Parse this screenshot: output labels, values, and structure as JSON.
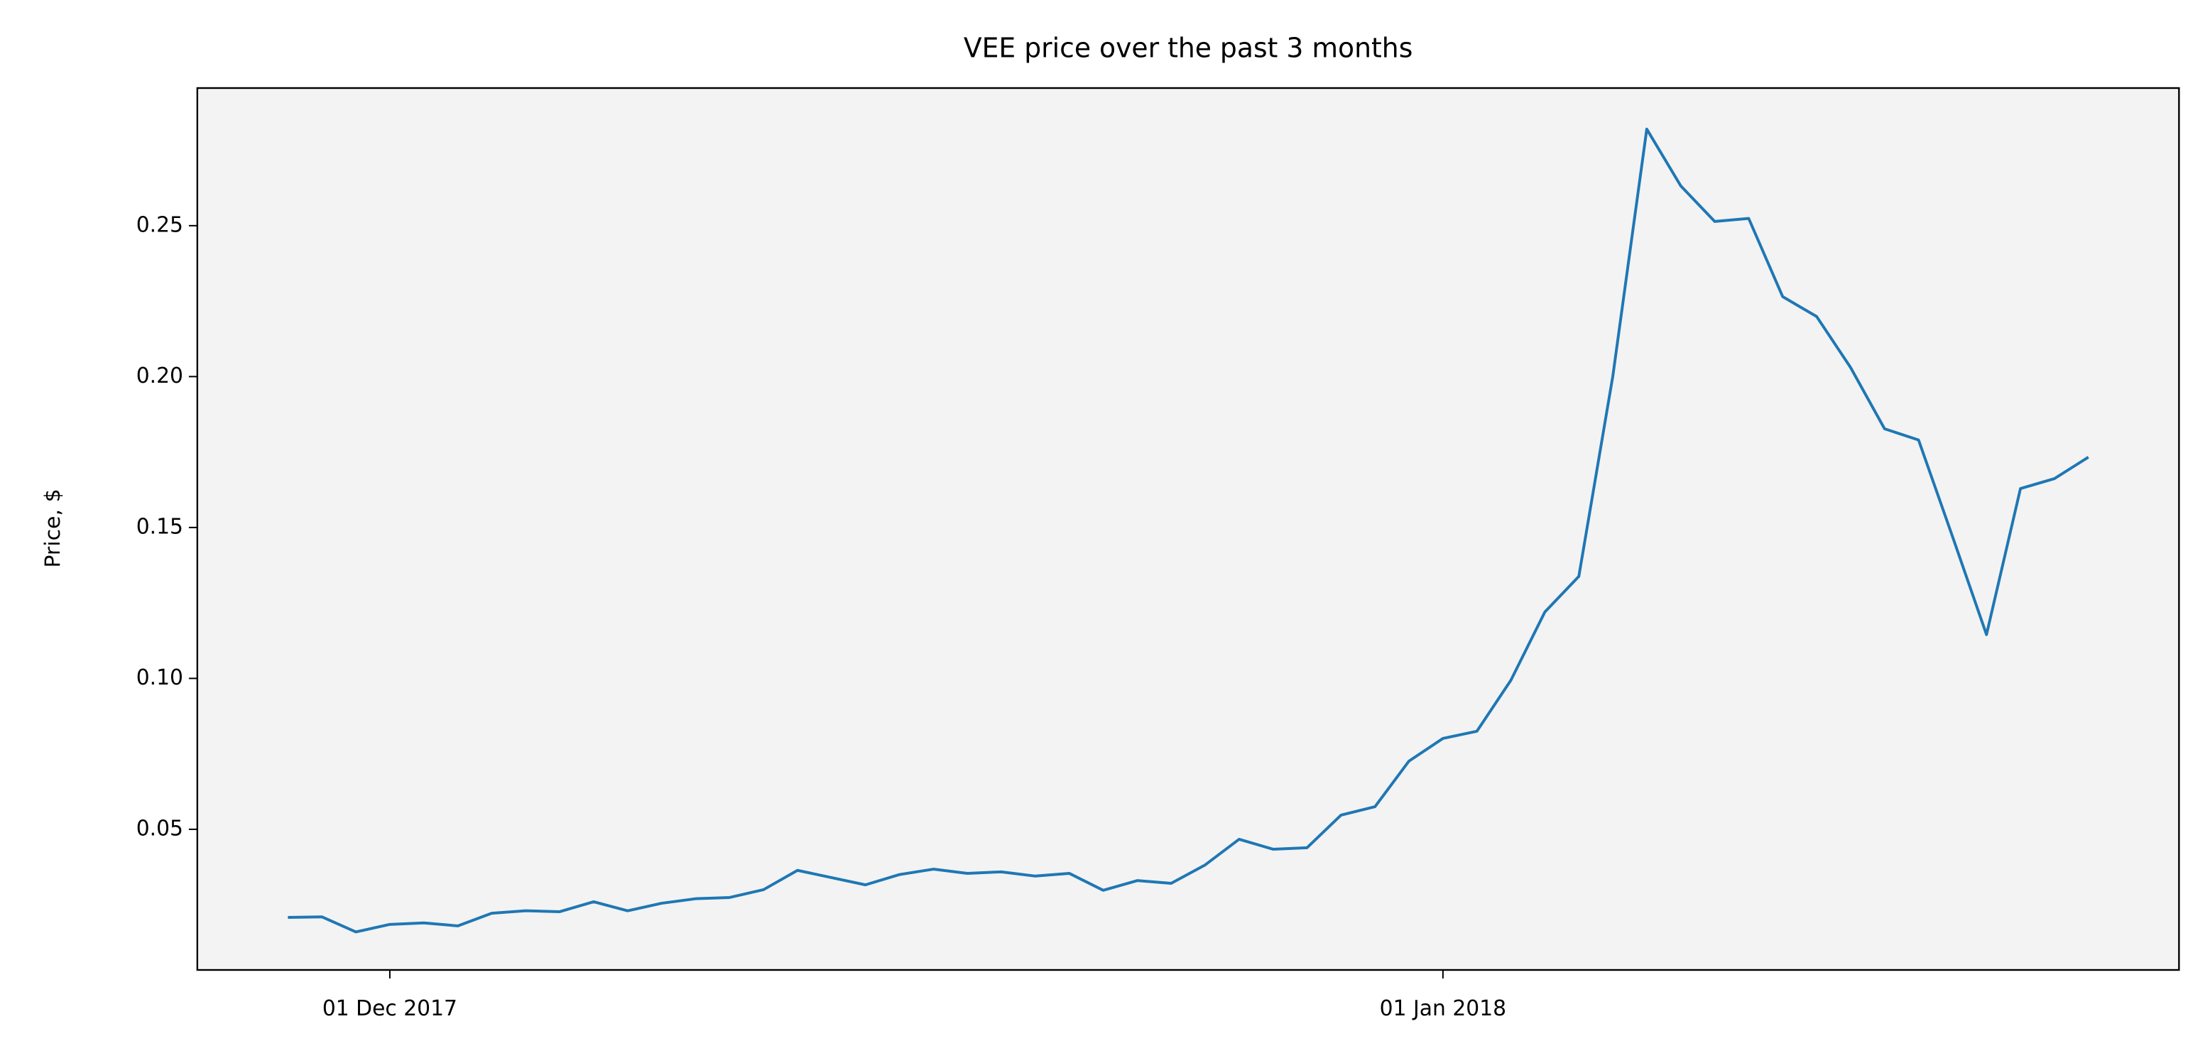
{
  "chart_data": {
    "type": "line",
    "title": "VEE price over the past 3 months",
    "ylabel": "Price, $",
    "x": [
      "2017-11-28",
      "2017-11-29",
      "2017-11-30",
      "2017-12-01",
      "2017-12-02",
      "2017-12-03",
      "2017-12-04",
      "2017-12-05",
      "2017-12-06",
      "2017-12-07",
      "2017-12-08",
      "2017-12-09",
      "2017-12-10",
      "2017-12-11",
      "2017-12-12",
      "2017-12-13",
      "2017-12-14",
      "2017-12-15",
      "2017-12-16",
      "2017-12-17",
      "2017-12-18",
      "2017-12-19",
      "2017-12-20",
      "2017-12-21",
      "2017-12-22",
      "2017-12-23",
      "2017-12-24",
      "2017-12-25",
      "2017-12-26",
      "2017-12-27",
      "2017-12-28",
      "2017-12-29",
      "2017-12-30",
      "2017-12-31",
      "2018-01-01",
      "2018-01-02",
      "2018-01-03",
      "2018-01-04",
      "2018-01-05",
      "2018-01-06",
      "2018-01-07",
      "2018-01-08",
      "2018-01-09",
      "2018-01-10",
      "2018-01-11",
      "2018-01-12",
      "2018-01-13",
      "2018-01-14",
      "2018-01-15",
      "2018-01-16",
      "2018-01-17",
      "2018-01-18",
      "2018-01-19",
      "2018-01-20"
    ],
    "series": [
      {
        "name": "VEE",
        "color": "#1f77b4",
        "values": [
          0.0208,
          0.021,
          0.016,
          0.0185,
          0.019,
          0.018,
          0.0222,
          0.023,
          0.0227,
          0.026,
          0.023,
          0.0255,
          0.027,
          0.0274,
          0.03,
          0.0364,
          0.034,
          0.0316,
          0.035,
          0.0368,
          0.0354,
          0.0359,
          0.0345,
          0.0354,
          0.0298,
          0.033,
          0.0321,
          0.0382,
          0.0467,
          0.0434,
          0.0439,
          0.0547,
          0.0575,
          0.0726,
          0.0801,
          0.0825,
          0.0994,
          0.122,
          0.1338,
          0.2001,
          0.282,
          0.2632,
          0.2514,
          0.2524,
          0.2265,
          0.2199,
          0.203,
          0.1827,
          0.179,
          0.147,
          0.1145,
          0.1629,
          0.1662,
          0.1733
        ]
      }
    ],
    "xlim": [
      "2017-11-25T08:00:00Z",
      "2018-01-22T16:00:00Z"
    ],
    "xticks": [
      {
        "value": "2017-12-01",
        "label": "01 Dec 2017"
      },
      {
        "value": "2018-01-01",
        "label": "01 Jan 2018"
      }
    ],
    "ylim": [
      0.0034,
      0.2956
    ],
    "yticks": [
      0.05,
      {
        "value": 0.1,
        "label": "0.10"
      },
      0.15,
      {
        "value": 0.2,
        "label": "0.20"
      },
      0.25
    ],
    "grid": false,
    "background": "#f3f3f3"
  }
}
